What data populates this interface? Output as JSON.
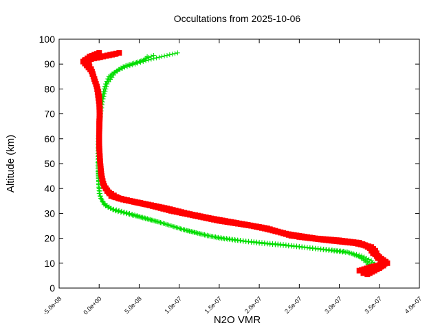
{
  "chart_data": {
    "type": "line",
    "title": "Occultations from 2025-10-06",
    "xlabel": "N2O VMR",
    "ylabel": "Altitude (km)",
    "xlim": [
      -5e-08,
      4e-07
    ],
    "ylim": [
      0,
      100
    ],
    "x_ticks": [
      -5e-08,
      0,
      5e-08,
      1e-07,
      1.5e-07,
      2e-07,
      2.5e-07,
      3e-07,
      3.5e-07,
      4e-07
    ],
    "x_tick_labels": [
      "-5.0e-08",
      "0.0e+00",
      "5.0e-08",
      "1.0e-07",
      "1.5e-07",
      "2.0e-07",
      "2.5e-07",
      "3.0e-07",
      "3.5e-07",
      "4.0e-07"
    ],
    "y_ticks": [
      0,
      10,
      20,
      30,
      40,
      50,
      60,
      70,
      80,
      90,
      100
    ],
    "y_tick_labels": [
      "0",
      "10",
      "20",
      "30",
      "40",
      "50",
      "60",
      "70",
      "80",
      "90",
      "100"
    ],
    "grid": false,
    "series": [
      {
        "color": "#00dd00",
        "marker": "plus",
        "profiles": [
          [
            [
              3.4e-07,
              6
            ],
            [
              3.42e-07,
              8
            ],
            [
              3.38e-07,
              10
            ],
            [
              3.3e-07,
              12
            ],
            [
              3.15e-07,
              14
            ],
            [
              2.9e-07,
              15
            ],
            [
              2.5e-07,
              16.5
            ],
            [
              2e-07,
              18
            ],
            [
              1.5e-07,
              20
            ],
            [
              1.1e-07,
              23
            ],
            [
              8e-08,
              26
            ],
            [
              4.5e-08,
              29
            ],
            [
              2e-08,
              31
            ],
            [
              8e-09,
              33
            ],
            [
              2e-09,
              36
            ],
            [
              0,
              40
            ],
            [
              -1e-09,
              45
            ],
            [
              -1e-09,
              50
            ],
            [
              -1e-09,
              55
            ],
            [
              -1e-09,
              60
            ],
            [
              0,
              65
            ],
            [
              1e-09,
              70
            ],
            [
              3e-09,
              75
            ],
            [
              6e-09,
              80
            ],
            [
              1.2e-08,
              85
            ],
            [
              2.5e-08,
              88
            ],
            [
              4.5e-08,
              90
            ],
            [
              6.5e-08,
              92
            ],
            [
              9.8e-08,
              94.5
            ]
          ],
          [
            [
              3.38e-07,
              5.5
            ],
            [
              3.44e-07,
              7
            ],
            [
              3.36e-07,
              9.5
            ],
            [
              3.25e-07,
              12.5
            ],
            [
              3.1e-07,
              14.5
            ],
            [
              2.8e-07,
              15.5
            ],
            [
              2.4e-07,
              17
            ],
            [
              1.9e-07,
              18.5
            ],
            [
              1.45e-07,
              20.5
            ],
            [
              1.05e-07,
              23.5
            ],
            [
              7.5e-08,
              26.5
            ],
            [
              4e-08,
              29.5
            ],
            [
              1.8e-08,
              31.5
            ],
            [
              6e-09,
              33.5
            ],
            [
              1e-09,
              37
            ],
            [
              -5e-10,
              42
            ],
            [
              -1.5e-09,
              48
            ],
            [
              -1.5e-09,
              54
            ],
            [
              -1e-09,
              60
            ],
            [
              0,
              66
            ],
            [
              1.5e-09,
              72
            ],
            [
              4e-09,
              77
            ],
            [
              8e-09,
              82
            ],
            [
              1.6e-08,
              86
            ],
            [
              3e-08,
              89
            ],
            [
              5e-08,
              91
            ],
            [
              6.8e-08,
              93.5
            ]
          ],
          [
            [
              3.42e-07,
              6.5
            ],
            [
              3.46e-07,
              9
            ],
            [
              3.4e-07,
              11
            ],
            [
              3.28e-07,
              13
            ],
            [
              3.05e-07,
              14.8
            ],
            [
              2.7e-07,
              16
            ],
            [
              2.3e-07,
              17.5
            ],
            [
              1.8e-07,
              19
            ],
            [
              1.35e-07,
              21
            ],
            [
              1e-07,
              24
            ],
            [
              7e-08,
              27
            ],
            [
              3.8e-08,
              30
            ],
            [
              1.5e-08,
              32
            ],
            [
              5e-09,
              34.5
            ],
            [
              0,
              38
            ],
            [
              -1e-09,
              44
            ],
            [
              -1e-09,
              52
            ],
            [
              -5e-10,
              58
            ],
            [
              5e-10,
              64
            ],
            [
              2e-09,
              70
            ],
            [
              5e-09,
              76
            ],
            [
              1e-08,
              82
            ],
            [
              2e-08,
              86.5
            ],
            [
              3.5e-08,
              89.5
            ],
            [
              5.5e-08,
              91.5
            ],
            [
              6e-08,
              93
            ]
          ]
        ]
      },
      {
        "color": "#ff0000",
        "marker": "square",
        "profiles": [
          [
            [
              3.3e-07,
              6
            ],
            [
              3.45e-07,
              7.5
            ],
            [
              3.55e-07,
              9
            ],
            [
              3.52e-07,
              11
            ],
            [
              3.48e-07,
              13
            ],
            [
              3.45e-07,
              15
            ],
            [
              3.4e-07,
              16.5
            ],
            [
              3.2e-07,
              18
            ],
            [
              2.9e-07,
              19
            ],
            [
              2.5e-07,
              20.5
            ],
            [
              2.2e-07,
              23
            ],
            [
              1.9e-07,
              25
            ],
            [
              1.5e-07,
              27
            ],
            [
              1.2e-07,
              29
            ],
            [
              9e-08,
              31
            ],
            [
              6e-08,
              33.5
            ],
            [
              3e-08,
              35.5
            ],
            [
              1.5e-08,
              37
            ],
            [
              8e-09,
              40
            ],
            [
              4e-09,
              43
            ],
            [
              2e-09,
              47
            ],
            [
              1e-09,
              52
            ],
            [
              0,
              57
            ],
            [
              0,
              62
            ],
            [
              0,
              67
            ],
            [
              1e-09,
              72
            ],
            [
              0,
              77
            ],
            [
              -2e-09,
              80
            ],
            [
              -5e-09,
              83
            ],
            [
              -8e-09,
              86
            ],
            [
              -1e-08,
              88
            ],
            [
              -1.5e-08,
              90
            ],
            [
              -1e-08,
              92
            ],
            [
              5e-09,
              93
            ],
            [
              2e-08,
              94
            ]
          ],
          [
            [
              3.25e-07,
              7
            ],
            [
              3.4e-07,
              8.5
            ],
            [
              3.6e-07,
              10
            ],
            [
              3.5e-07,
              12.5
            ],
            [
              3.42e-07,
              14
            ],
            [
              3.38e-07,
              16
            ],
            [
              3.3e-07,
              17.5
            ],
            [
              3.1e-07,
              18.5
            ],
            [
              2.8e-07,
              19.5
            ],
            [
              2.4e-07,
              21
            ],
            [
              2.1e-07,
              24
            ],
            [
              1.75e-07,
              26
            ],
            [
              1.4e-07,
              28
            ],
            [
              1.1e-07,
              30
            ],
            [
              8.5e-08,
              32
            ],
            [
              5.5e-08,
              34
            ],
            [
              2.5e-08,
              36
            ],
            [
              1.2e-08,
              38.5
            ],
            [
              6e-09,
              41
            ],
            [
              3e-09,
              45
            ],
            [
              1.5e-09,
              50
            ],
            [
              5e-10,
              55
            ],
            [
              0,
              60
            ],
            [
              5e-10,
              65
            ],
            [
              1e-09,
              70
            ],
            [
              5e-10,
              75
            ],
            [
              -1e-09,
              79
            ],
            [
              -4e-09,
              82
            ],
            [
              -7e-09,
              85
            ],
            [
              -9e-09,
              87
            ],
            [
              -2e-08,
              91
            ],
            [
              -1.2e-08,
              93
            ],
            [
              0,
              94.5
            ]
          ],
          [
            [
              3.35e-07,
              5.5
            ],
            [
              3.5e-07,
              8
            ],
            [
              3.58e-07,
              10.5
            ],
            [
              3.48e-07,
              12
            ],
            [
              3.44e-07,
              14.5
            ],
            [
              3.36e-07,
              16.8
            ],
            [
              3.25e-07,
              18.2
            ],
            [
              3e-07,
              19.2
            ],
            [
              2.7e-07,
              20
            ],
            [
              2.3e-07,
              22
            ],
            [
              2e-07,
              24.5
            ],
            [
              1.65e-07,
              26.5
            ],
            [
              1.3e-07,
              28.5
            ],
            [
              1e-07,
              30.5
            ],
            [
              7.5e-08,
              32.5
            ],
            [
              4.5e-08,
              34.5
            ],
            [
              2e-08,
              36.5
            ],
            [
              1e-08,
              39
            ],
            [
              5e-09,
              42
            ],
            [
              2.5e-09,
              46
            ],
            [
              1e-09,
              51
            ],
            [
              0,
              56
            ],
            [
              0,
              61
            ],
            [
              5e-10,
              68
            ],
            [
              0,
              74
            ],
            [
              -3e-09,
              81
            ],
            [
              -6e-09,
              84
            ],
            [
              -1.2e-08,
              89
            ],
            [
              -1.8e-08,
              91.5
            ],
            [
              -5e-09,
              92.5
            ],
            [
              1e-08,
              93.5
            ],
            [
              2.5e-08,
              94.5
            ]
          ]
        ]
      }
    ]
  }
}
